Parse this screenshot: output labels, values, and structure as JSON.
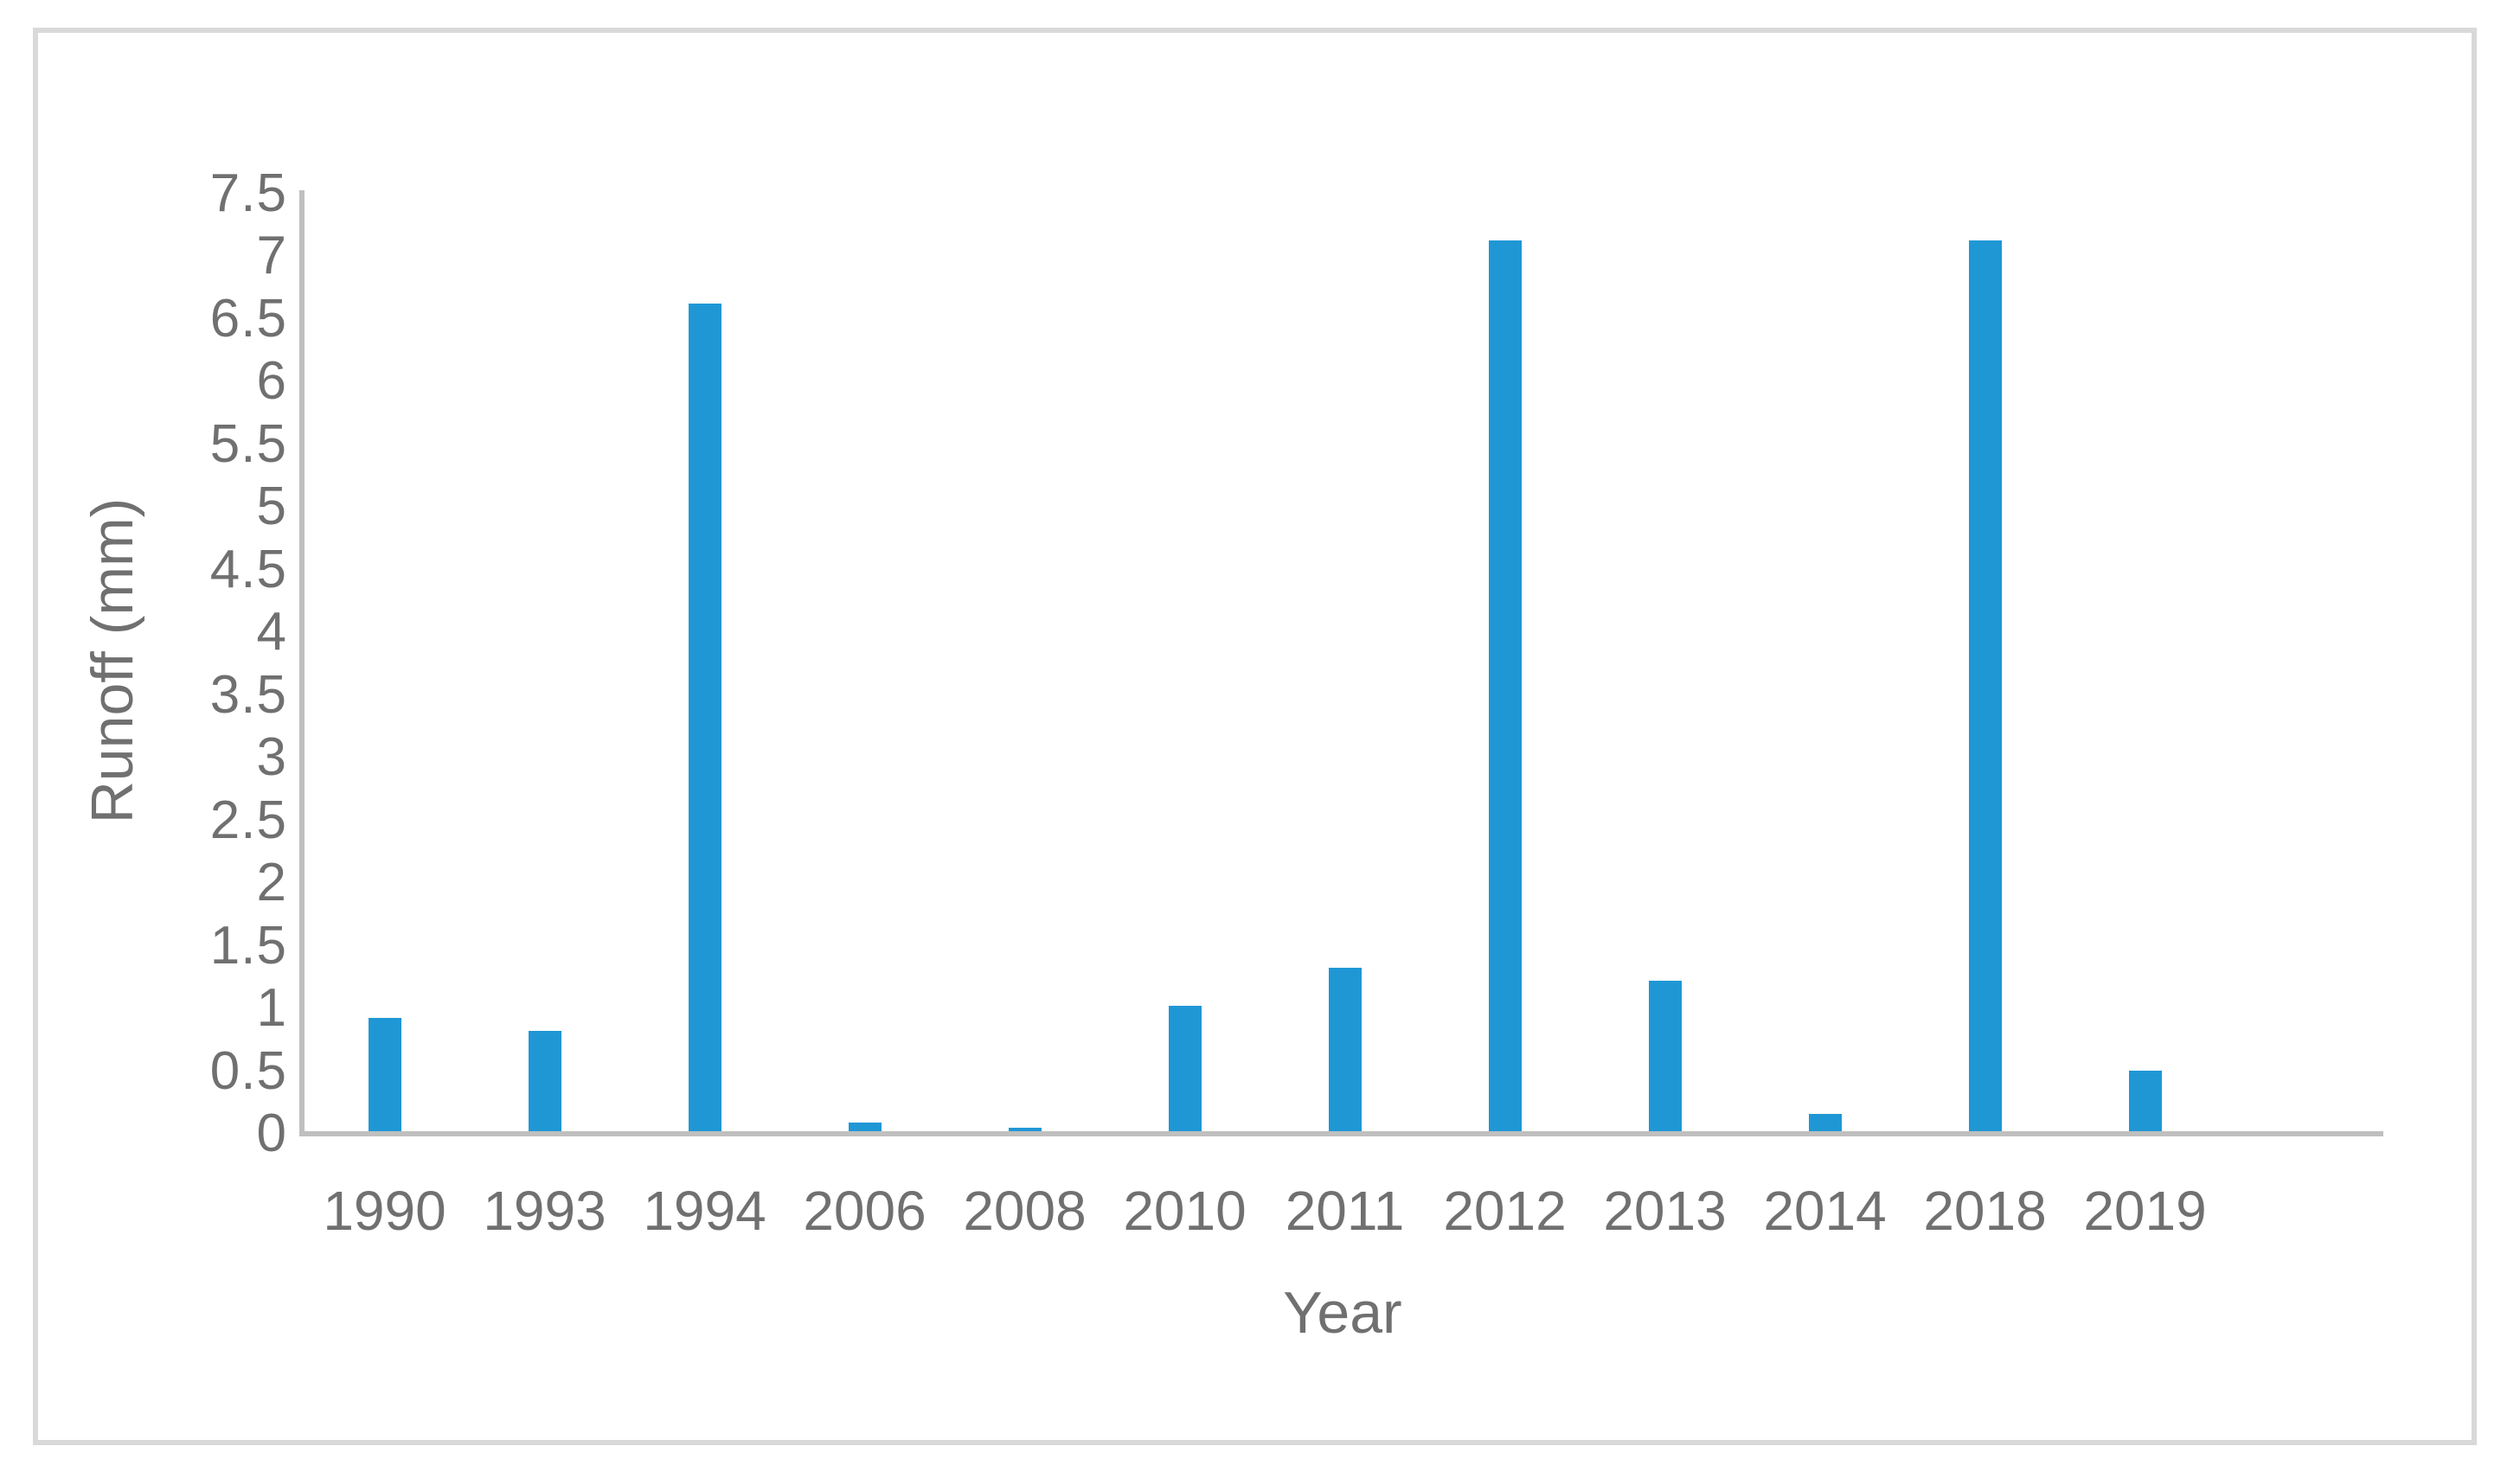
{
  "figure": {
    "background": "#FFFFFF",
    "frame_color": "#D9D9D9"
  },
  "chart_data": {
    "type": "bar",
    "title": "",
    "xlabel": "Year",
    "ylabel": "Runoff (mm)",
    "categories": [
      "1990",
      "1993",
      "1994",
      "2006",
      "2008",
      "2010",
      "2011",
      "2012",
      "2013",
      "2014",
      "2018",
      "2019"
    ],
    "values": [
      0.9,
      0.8,
      6.6,
      0.07,
      0.03,
      1.0,
      1.3,
      7.1,
      1.2,
      0.14,
      7.1,
      0.48
    ],
    "ylim": [
      0,
      7.5
    ],
    "y_ticks": [
      "0",
      "0.5",
      "1",
      "1.5",
      "2",
      "2.5",
      "3",
      "3.5",
      "4",
      "4.5",
      "5",
      "5.5",
      "6",
      "6.5",
      "7",
      "7.5"
    ],
    "grid": false,
    "legend": "none",
    "bar_color": "#2097D5",
    "axis_line_color": "#BFBFBF",
    "text_color": "#707070"
  }
}
